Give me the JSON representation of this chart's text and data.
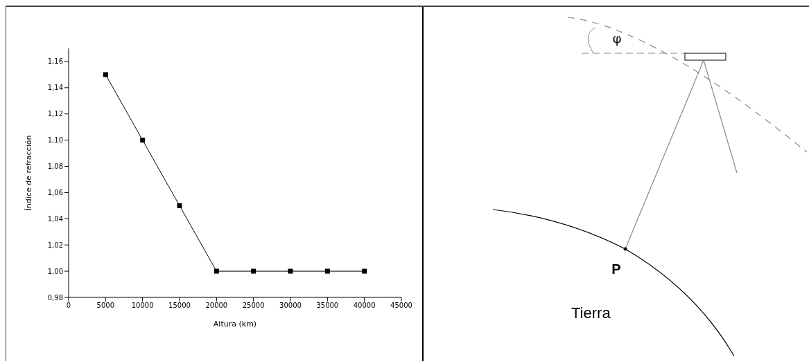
{
  "chart_data": {
    "type": "line",
    "xlabel": "Altura (km)",
    "ylabel": "Índice de refracción",
    "x": [
      5000,
      10000,
      15000,
      20000,
      25000,
      30000,
      35000,
      40000
    ],
    "values": [
      1.15,
      1.1,
      1.05,
      1.0,
      1.0,
      1.0,
      1.0,
      1.0
    ],
    "color": "#000000",
    "marker": "square",
    "line_style": "solid",
    "xlim": [
      0,
      45000
    ],
    "xticks": [
      0,
      5000,
      10000,
      15000,
      20000,
      25000,
      30000,
      35000,
      40000,
      45000
    ],
    "ylim": [
      0.98,
      1.17
    ],
    "yticks": [
      {
        "value": 0.98,
        "label": "0,98"
      },
      {
        "value": 1.0,
        "label": "1,00"
      },
      {
        "value": 1.02,
        "label": "1,02"
      },
      {
        "value": 1.04,
        "label": "1,04"
      },
      {
        "value": 1.06,
        "label": "1,06"
      },
      {
        "value": 1.08,
        "label": "1,08"
      },
      {
        "value": 1.1,
        "label": "1,10"
      },
      {
        "value": 1.12,
        "label": "1,12"
      },
      {
        "value": 1.14,
        "label": "1,14"
      },
      {
        "value": 1.16,
        "label": "1,16"
      }
    ],
    "annotations": [
      "φ",
      "P",
      "Tierra"
    ]
  }
}
